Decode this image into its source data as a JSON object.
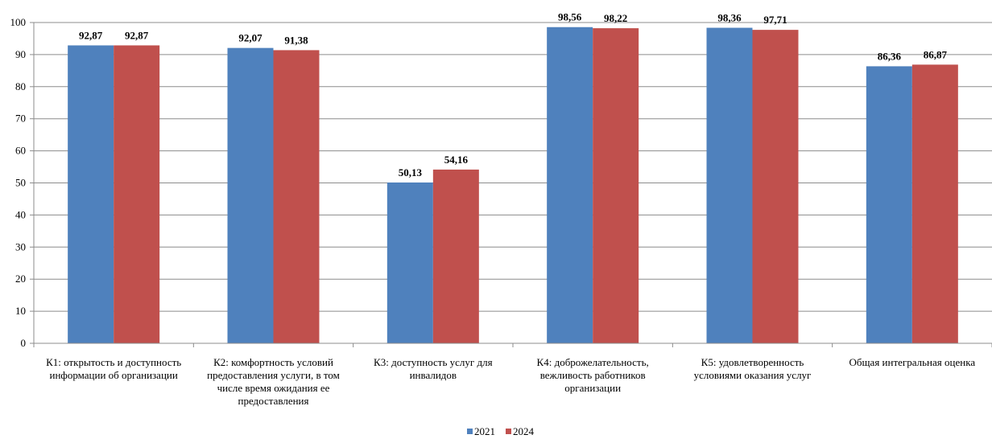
{
  "chart_data": {
    "type": "bar",
    "categories": [
      "К1: открытость и доступность информации об организации",
      "К2: комфортность условий предоставления услуги, в том числе время ожидания ее предоставления",
      "К3: доступность услуг для инвалидов",
      "К4: доброжелательность, вежливость работников организации",
      "К5: удовлетворенность условиями оказания услуг",
      "Общая интегральная оценка"
    ],
    "category_label_lines": [
      [
        "К1: открытость и доступность",
        "информации об организации"
      ],
      [
        "К2: комфортность условий",
        "предоставления услуги, в том",
        "числе время ожидания ее",
        "предоставления"
      ],
      [
        "К3: доступность услуг для",
        "инвалидов"
      ],
      [
        "К4: доброжелательность,",
        "вежливость работников",
        "организации"
      ],
      [
        "К5: удовлетворенность",
        "условиями оказания услуг"
      ],
      [
        "Общая интегральная оценка"
      ]
    ],
    "series": [
      {
        "name": "2021",
        "color": "#4F81BD",
        "values": [
          92.87,
          92.07,
          50.13,
          98.56,
          98.36,
          86.36
        ],
        "labels": [
          "92,87",
          "92,07",
          "50,13",
          "98,56",
          "98,36",
          "86,36"
        ]
      },
      {
        "name": "2024",
        "color": "#C0504D",
        "values": [
          92.87,
          91.38,
          54.16,
          98.22,
          97.71,
          86.87
        ],
        "labels": [
          "92,87",
          "91,38",
          "54,16",
          "98,22",
          "97,71",
          "86,87"
        ]
      }
    ],
    "yticks": [
      "0",
      "10",
      "20",
      "30",
      "40",
      "50",
      "60",
      "70",
      "80",
      "90",
      "100"
    ],
    "ylim": [
      0,
      100
    ],
    "grid": true,
    "legend_position": "bottom"
  }
}
